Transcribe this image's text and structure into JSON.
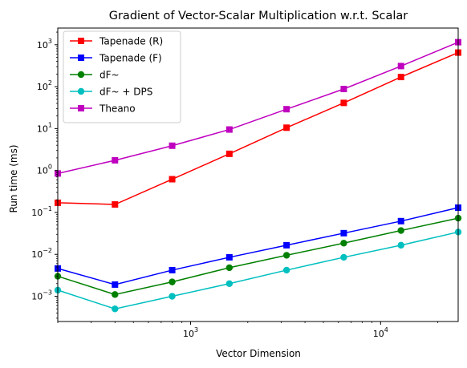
{
  "chart_data": {
    "type": "line",
    "title": "Gradient of Vector-Scalar Multiplication w.r.t. Scalar",
    "xlabel": "Vector Dimension",
    "ylabel": "Run time (ms)",
    "xscale": "log",
    "yscale": "log",
    "xlim": [
      200,
      25600
    ],
    "ylim": [
      0.00025,
      2500
    ],
    "grid": false,
    "legend_position": "top-left",
    "x": [
      200,
      400,
      800,
      1600,
      3200,
      6400,
      12800,
      25600
    ],
    "x_tick_labels": [
      {
        "value": 1000,
        "base": "10",
        "exp": "3"
      },
      {
        "value": 10000,
        "base": "10",
        "exp": "4"
      }
    ],
    "y_tick_labels": [
      {
        "value": 0.001,
        "base": "10",
        "exp": "−3"
      },
      {
        "value": 0.01,
        "base": "10",
        "exp": "−2"
      },
      {
        "value": 0.1,
        "base": "10",
        "exp": "−1"
      },
      {
        "value": 1,
        "base": "10",
        "exp": "0"
      },
      {
        "value": 10,
        "base": "10",
        "exp": "1"
      },
      {
        "value": 100,
        "base": "10",
        "exp": "2"
      },
      {
        "value": 1000,
        "base": "10",
        "exp": "3"
      }
    ],
    "series": [
      {
        "name": "Tapenade (R)",
        "color": "#ff0000",
        "marker": "square",
        "values": [
          0.17,
          0.155,
          0.62,
          2.5,
          10.5,
          41,
          170,
          650
        ]
      },
      {
        "name": "Tapenade (F)",
        "color": "#0000ff",
        "marker": "square",
        "values": [
          0.0046,
          0.0019,
          0.0042,
          0.0085,
          0.0165,
          0.032,
          0.062,
          0.13
        ]
      },
      {
        "name": "dF~",
        "color": "#008000",
        "marker": "circle",
        "values": [
          0.003,
          0.0011,
          0.0022,
          0.0048,
          0.0095,
          0.0185,
          0.037,
          0.073
        ]
      },
      {
        "name": "dF~ + DPS",
        "color": "#00bfbf",
        "marker": "circle",
        "values": [
          0.0014,
          0.0005,
          0.001,
          0.002,
          0.0042,
          0.0085,
          0.0165,
          0.034
        ]
      },
      {
        "name": "Theano",
        "color": "#bf00bf",
        "marker": "square",
        "values": [
          0.85,
          1.75,
          3.9,
          9.5,
          29,
          88,
          310,
          1150
        ]
      }
    ]
  }
}
